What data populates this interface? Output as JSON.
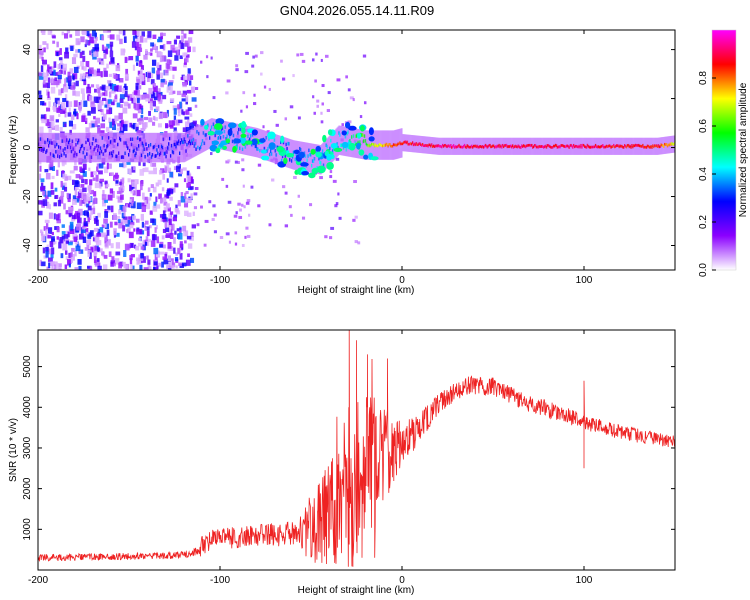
{
  "title": "GN04.2026.055.14.11.R09",
  "chart_data": [
    {
      "type": "heatmap",
      "xlabel": "Height of straight line (km)",
      "ylabel": "Frequency (Hz)",
      "xlim": [
        -200,
        150
      ],
      "ylim": [
        -50,
        48
      ],
      "xticks": [
        -200,
        -100,
        0,
        100
      ],
      "yticks": [
        -40,
        -20,
        0,
        20,
        40
      ],
      "ridge": [
        {
          "x": -200,
          "f": 0,
          "a": 0.25
        },
        {
          "x": -150,
          "f": 0,
          "a": 0.25
        },
        {
          "x": -120,
          "f": 0,
          "a": 0.3
        },
        {
          "x": -105,
          "f": 6,
          "a": 0.35
        },
        {
          "x": -80,
          "f": 2,
          "a": 0.35
        },
        {
          "x": -60,
          "f": -3,
          "a": 0.35
        },
        {
          "x": -45,
          "f": -5,
          "a": 0.4
        },
        {
          "x": -35,
          "f": 3,
          "a": 0.4
        },
        {
          "x": -20,
          "f": 1,
          "a": 0.6
        },
        {
          "x": -5,
          "f": 1,
          "a": 0.8
        },
        {
          "x": 0,
          "f": 2,
          "a": 0.85
        },
        {
          "x": 20,
          "f": 0.5,
          "a": 0.9
        },
        {
          "x": 90,
          "f": 0.5,
          "a": 0.9
        },
        {
          "x": 140,
          "f": 0.5,
          "a": 0.85
        },
        {
          "x": 150,
          "f": 1.5,
          "a": 0.7
        }
      ],
      "colorbar": {
        "label": "Normalized spectral amplitude",
        "range": [
          0,
          1
        ],
        "ticks": [
          "0.0",
          "0.2",
          "0.4",
          "0.6",
          "0.8"
        ],
        "colors": [
          "#ffffff",
          "#8b00ff",
          "#0000ff",
          "#00ffff",
          "#00ff00",
          "#ffff00",
          "#ff0000",
          "#ff00ff"
        ]
      }
    },
    {
      "type": "line",
      "color": "#ee2222",
      "xlabel": "Height of straight line (km)",
      "ylabel": "SNR (10 * v/v)",
      "xlim": [
        -200,
        150
      ],
      "ylim": [
        0,
        5900
      ],
      "xticks": [
        -200,
        -100,
        0,
        100
      ],
      "yticks": [
        1000,
        2000,
        3000,
        4000,
        5000
      ],
      "trend": [
        {
          "x": -200,
          "y": 300
        },
        {
          "x": -130,
          "y": 350
        },
        {
          "x": -115,
          "y": 400
        },
        {
          "x": -105,
          "y": 750
        },
        {
          "x": -80,
          "y": 850
        },
        {
          "x": -55,
          "y": 900
        },
        {
          "x": -40,
          "y": 1300
        },
        {
          "x": -30,
          "y": 2000
        },
        {
          "x": -20,
          "y": 2400
        },
        {
          "x": -12,
          "y": 2800
        },
        {
          "x": 0,
          "y": 3100
        },
        {
          "x": 10,
          "y": 3500
        },
        {
          "x": 20,
          "y": 4100
        },
        {
          "x": 35,
          "y": 4550
        },
        {
          "x": 50,
          "y": 4500
        },
        {
          "x": 70,
          "y": 4100
        },
        {
          "x": 90,
          "y": 3800
        },
        {
          "x": 110,
          "y": 3500
        },
        {
          "x": 130,
          "y": 3300
        },
        {
          "x": 150,
          "y": 3150
        }
      ],
      "noise": [
        {
          "x": -200,
          "amp": 90
        },
        {
          "x": -115,
          "amp": 80
        },
        {
          "x": -110,
          "amp": 250
        },
        {
          "x": -60,
          "amp": 300
        },
        {
          "x": -45,
          "amp": 1100
        },
        {
          "x": -25,
          "amp": 2200
        },
        {
          "x": -12,
          "amp": 1400
        },
        {
          "x": 0,
          "amp": 500
        },
        {
          "x": 20,
          "amp": 250
        },
        {
          "x": 150,
          "amp": 160
        }
      ],
      "spikes": [
        {
          "x": -29,
          "y": 5900
        },
        {
          "x": -27,
          "y": 300
        },
        {
          "x": -25,
          "y": 5650
        },
        {
          "x": -22,
          "y": 300
        },
        {
          "x": -19,
          "y": 5300
        },
        {
          "x": -15,
          "y": 300
        },
        {
          "x": -8,
          "y": 5200
        },
        {
          "x": 100,
          "y": 2500
        },
        {
          "x": 100,
          "y": 4650
        }
      ]
    }
  ]
}
